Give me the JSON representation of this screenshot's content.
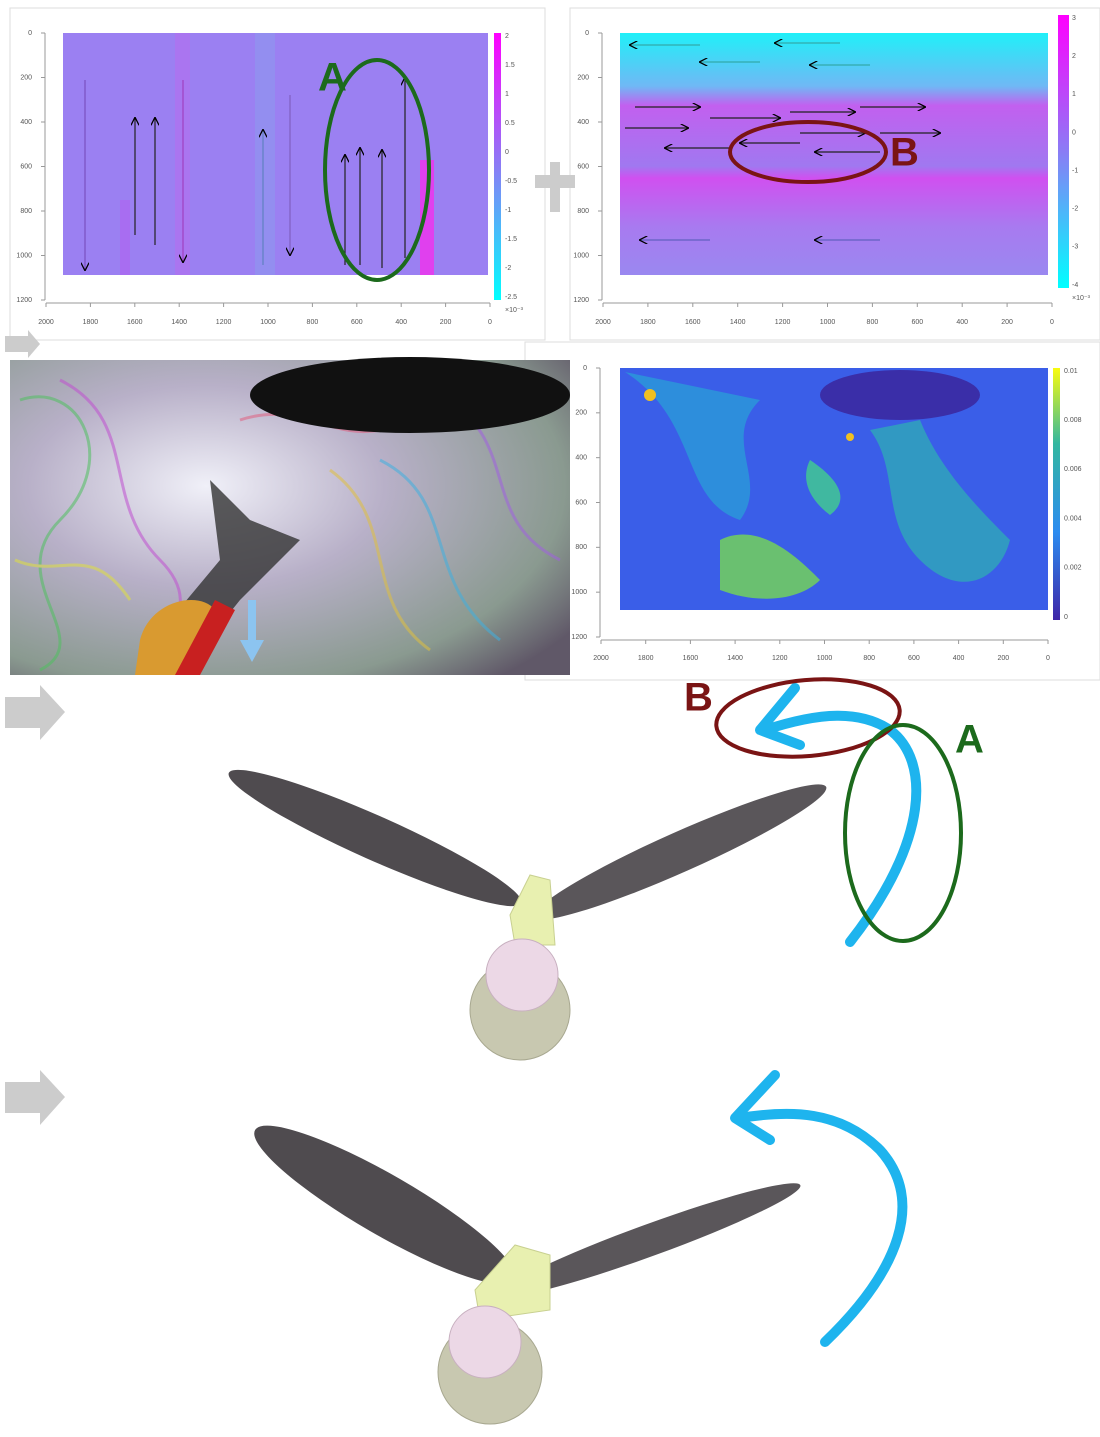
{
  "plots": [
    {
      "x_ticks": [
        2000,
        1800,
        1600,
        1400,
        1200,
        1000,
        800,
        600,
        400,
        200,
        0
      ],
      "y_ticks": [
        0,
        200,
        400,
        600,
        800,
        1000,
        1200
      ],
      "colorbar_ticks": [
        2,
        1.5,
        1,
        0.5,
        0,
        -0.5,
        -1,
        -1.5,
        -2,
        -2.5
      ],
      "colorbar_exponent": "×10⁻³"
    },
    {
      "x_ticks": [
        2000,
        1800,
        1600,
        1400,
        1200,
        1000,
        800,
        600,
        400,
        200,
        0
      ],
      "y_ticks": [
        0,
        200,
        400,
        600,
        800,
        1000,
        1200
      ],
      "colorbar_ticks": [
        3,
        2,
        1,
        0,
        -1,
        -2,
        -3,
        -4
      ],
      "colorbar_exponent": "×10⁻³"
    },
    {
      "x_ticks": [
        2000,
        1800,
        1600,
        1400,
        1200,
        1000,
        800,
        600,
        400,
        200,
        0
      ],
      "y_ticks": [
        0,
        200,
        400,
        600,
        800,
        1000,
        1200
      ],
      "colorbar_ticks": [
        0.01,
        0.008,
        0.006,
        0.004,
        0.002,
        0
      ]
    }
  ],
  "annotations": {
    "plot_a_label": "A",
    "plot_b_label": "B",
    "diagram_b_label": "B",
    "diagram_a_label": "A"
  }
}
